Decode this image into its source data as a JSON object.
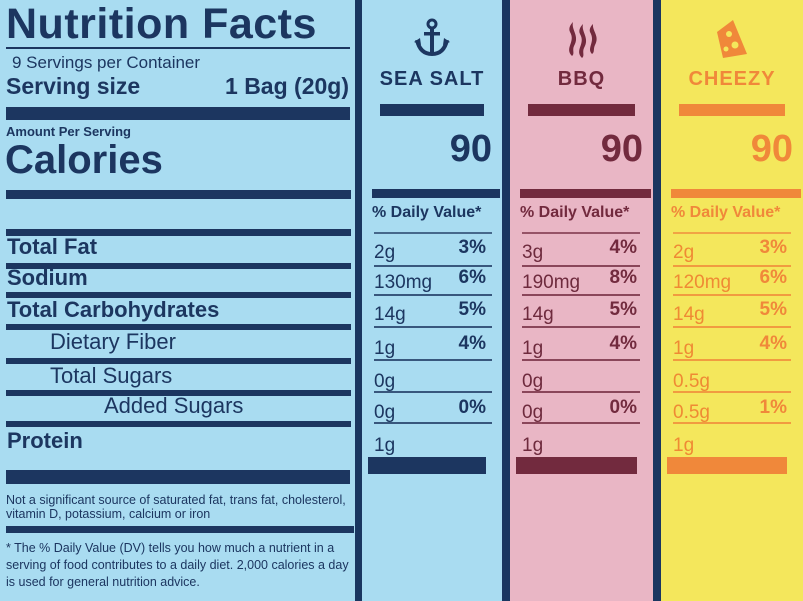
{
  "label": {
    "title": "Nutrition Facts",
    "servings_per_container": "9 Servings per Container",
    "serving_size_label": "Serving size",
    "serving_size_value": "1 Bag (20g)",
    "amount_per_serving": "Amount Per Serving",
    "calories_label": "Calories",
    "nutrients": [
      "Total Fat",
      "Sodium",
      "Total Carbohydrates",
      "Dietary Fiber",
      "Total Sugars",
      "Added Sugars",
      "Protein"
    ],
    "not_significant_note": "Not a significant source of saturated fat, trans fat, cholesterol, vitamin D, potassium, calcium or iron",
    "dv_footnote": "* The % Daily Value (DV) tells you how much a nutrient in a serving of food contributes to a daily diet. 2,000 calories a day is used for general nutrition advice."
  },
  "flavors": [
    {
      "name": "SEA SALT",
      "icon": "anchor-icon",
      "calories": "90",
      "dv_header": "% Daily Value*",
      "bg": "#a9dcf1",
      "text": "#1c3660",
      "accent": "#1c3660",
      "amounts": [
        "2g",
        "130mg",
        "14g",
        "1g",
        "0g",
        "0g",
        "1g"
      ],
      "percents": [
        "3%",
        "6%",
        "5%",
        "4%",
        "",
        "0%",
        ""
      ]
    },
    {
      "name": "BBQ",
      "icon": "smoke-icon",
      "calories": "90",
      "dv_header": "% Daily Value*",
      "bg": "#e9b6c5",
      "text": "#6e2a3d",
      "accent": "#722a3e",
      "amounts": [
        "3g",
        "190mg",
        "14g",
        "1g",
        "0g",
        "0g",
        "1g"
      ],
      "percents": [
        "4%",
        "8%",
        "5%",
        "4%",
        "",
        "0%",
        ""
      ]
    },
    {
      "name": "CHEEZY",
      "icon": "cheese-icon",
      "calories": "90",
      "dv_header": "% Daily Value*",
      "bg": "#f4e75c",
      "text": "#ef8a34",
      "accent": "#f0883a",
      "amounts": [
        "2g",
        "120mg",
        "14g",
        "1g",
        "0.5g",
        "0.5g",
        "1g"
      ],
      "percents": [
        "3%",
        "6%",
        "5%",
        "4%",
        "",
        "1%",
        ""
      ]
    }
  ]
}
